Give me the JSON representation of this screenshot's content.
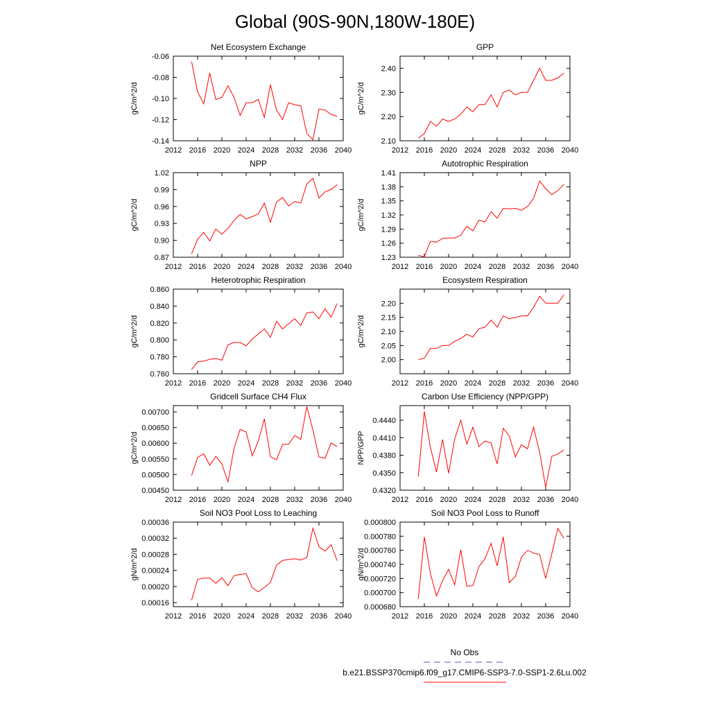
{
  "title": "Global (90S-90N,180W-180E)",
  "legend": [
    {
      "label": "No Obs",
      "color": "#4f4fcf",
      "style": "dashed"
    },
    {
      "label": "b.e21.BSSP370cmip6.f09_g17.CMIP6-SSP3-7.0-SSP1-2.6Lu.002",
      "color": "#ff0000",
      "style": "solid"
    }
  ],
  "chart_data": [
    {
      "type": "line",
      "title": "Net Ecosystem Exchange",
      "ylabel": "gC/m^2/d",
      "xlim": [
        2012,
        2040
      ],
      "ylim": [
        -0.14,
        -0.06
      ],
      "xticks": [
        2012,
        2016,
        2020,
        2024,
        2028,
        2032,
        2036,
        2040
      ],
      "yticks": [
        -0.14,
        -0.12,
        -0.1,
        -0.08,
        -0.06
      ],
      "ytick_labels": [
        "-0.14",
        "-0.12",
        "-0.10",
        "-0.08",
        "-0.06"
      ],
      "x": [
        2015,
        2016,
        2017,
        2018,
        2019,
        2020,
        2021,
        2022,
        2023,
        2024,
        2025,
        2026,
        2027,
        2028,
        2029,
        2030,
        2031,
        2032,
        2033,
        2034,
        2035,
        2036,
        2037,
        2038,
        2039
      ],
      "values": [
        -0.065,
        -0.094,
        -0.105,
        -0.076,
        -0.101,
        -0.099,
        -0.088,
        -0.099,
        -0.116,
        -0.104,
        -0.104,
        -0.101,
        -0.118,
        -0.087,
        -0.111,
        -0.12,
        -0.104,
        -0.106,
        -0.107,
        -0.133,
        -0.139,
        -0.11,
        -0.111,
        -0.115,
        -0.117
      ],
      "color": "#ff0000"
    },
    {
      "type": "line",
      "title": "GPP",
      "ylabel": "gC/m^2/d",
      "xlim": [
        2012,
        2040
      ],
      "ylim": [
        2.1,
        2.45
      ],
      "xticks": [
        2012,
        2016,
        2020,
        2024,
        2028,
        2032,
        2036,
        2040
      ],
      "yticks": [
        2.1,
        2.2,
        2.3,
        2.4
      ],
      "ytick_labels": [
        "2.10",
        "2.20",
        "2.30",
        "2.40"
      ],
      "x": [
        2015,
        2016,
        2017,
        2018,
        2019,
        2020,
        2021,
        2022,
        2023,
        2024,
        2025,
        2026,
        2027,
        2028,
        2029,
        2030,
        2031,
        2032,
        2033,
        2034,
        2035,
        2036,
        2037,
        2038,
        2039
      ],
      "values": [
        2.11,
        2.13,
        2.18,
        2.16,
        2.19,
        2.18,
        2.19,
        2.21,
        2.24,
        2.22,
        2.25,
        2.25,
        2.29,
        2.24,
        2.3,
        2.31,
        2.29,
        2.3,
        2.3,
        2.35,
        2.4,
        2.35,
        2.35,
        2.36,
        2.38
      ],
      "color": "#ff0000"
    },
    {
      "type": "line",
      "title": "NPP",
      "ylabel": "gC/m^2/d",
      "xlim": [
        2012,
        2040
      ],
      "ylim": [
        0.87,
        1.02
      ],
      "xticks": [
        2012,
        2016,
        2020,
        2024,
        2028,
        2032,
        2036,
        2040
      ],
      "yticks": [
        0.87,
        0.9,
        0.93,
        0.96,
        0.99,
        1.02
      ],
      "ytick_labels": [
        "0.87",
        "0.90",
        "0.93",
        "0.96",
        "0.99",
        "1.02"
      ],
      "x": [
        2015,
        2016,
        2017,
        2018,
        2019,
        2020,
        2021,
        2022,
        2023,
        2024,
        2025,
        2026,
        2027,
        2028,
        2029,
        2030,
        2031,
        2032,
        2033,
        2034,
        2035,
        2036,
        2037,
        2038,
        2039
      ],
      "values": [
        0.876,
        0.902,
        0.914,
        0.899,
        0.92,
        0.911,
        0.921,
        0.935,
        0.946,
        0.938,
        0.942,
        0.947,
        0.966,
        0.932,
        0.968,
        0.976,
        0.961,
        0.969,
        0.966,
        1.0,
        1.01,
        0.975,
        0.986,
        0.99,
        0.999
      ],
      "color": "#ff0000"
    },
    {
      "type": "line",
      "title": "Autotrophic Respiration",
      "ylabel": "gC/m^2/d",
      "xlim": [
        2012,
        2040
      ],
      "ylim": [
        1.23,
        1.41
      ],
      "xticks": [
        2012,
        2016,
        2020,
        2024,
        2028,
        2032,
        2036,
        2040
      ],
      "yticks": [
        1.23,
        1.26,
        1.29,
        1.32,
        1.35,
        1.38,
        1.41
      ],
      "ytick_labels": [
        "1.23",
        "1.26",
        "1.29",
        "1.32",
        "1.35",
        "1.38",
        "1.41"
      ],
      "x": [
        2015,
        2016,
        2017,
        2018,
        2019,
        2020,
        2021,
        2022,
        2023,
        2024,
        2025,
        2026,
        2027,
        2028,
        2029,
        2030,
        2031,
        2032,
        2033,
        2034,
        2035,
        2036,
        2037,
        2038,
        2039
      ],
      "values": [
        1.234,
        1.231,
        1.264,
        1.262,
        1.27,
        1.271,
        1.271,
        1.277,
        1.296,
        1.286,
        1.309,
        1.305,
        1.327,
        1.313,
        1.334,
        1.333,
        1.334,
        1.33,
        1.338,
        1.355,
        1.392,
        1.376,
        1.363,
        1.372,
        1.385
      ],
      "color": "#ff0000"
    },
    {
      "type": "line",
      "title": "Heterotrophic Respiration",
      "ylabel": "gC/m^2/d",
      "xlim": [
        2012,
        2040
      ],
      "ylim": [
        0.76,
        0.86
      ],
      "xticks": [
        2012,
        2016,
        2020,
        2024,
        2028,
        2032,
        2036,
        2040
      ],
      "yticks": [
        0.76,
        0.78,
        0.8,
        0.82,
        0.84,
        0.86
      ],
      "ytick_labels": [
        "0.760",
        "0.780",
        "0.800",
        "0.820",
        "0.840",
        "0.860"
      ],
      "x": [
        2015,
        2016,
        2017,
        2018,
        2019,
        2020,
        2021,
        2022,
        2023,
        2024,
        2025,
        2026,
        2027,
        2028,
        2029,
        2030,
        2031,
        2032,
        2033,
        2034,
        2035,
        2036,
        2037,
        2038,
        2039
      ],
      "values": [
        0.765,
        0.774,
        0.775,
        0.777,
        0.778,
        0.776,
        0.794,
        0.797,
        0.797,
        0.793,
        0.801,
        0.807,
        0.813,
        0.803,
        0.822,
        0.813,
        0.819,
        0.825,
        0.817,
        0.832,
        0.833,
        0.825,
        0.837,
        0.827,
        0.843
      ],
      "color": "#ff0000"
    },
    {
      "type": "line",
      "title": "Ecosystem Respiration",
      "ylabel": "gC/m^2/d",
      "xlim": [
        2012,
        2040
      ],
      "ylim": [
        1.95,
        2.25
      ],
      "xticks": [
        2012,
        2016,
        2020,
        2024,
        2028,
        2032,
        2036,
        2040
      ],
      "yticks": [
        2.0,
        2.05,
        2.1,
        2.15,
        2.2
      ],
      "ytick_labels": [
        "2.00",
        "2.05",
        "2.10",
        "2.15",
        "2.20"
      ],
      "x": [
        2015,
        2016,
        2017,
        2018,
        2019,
        2020,
        2021,
        2022,
        2023,
        2024,
        2025,
        2026,
        2027,
        2028,
        2029,
        2030,
        2031,
        2032,
        2033,
        2034,
        2035,
        2036,
        2037,
        2038,
        2039
      ],
      "values": [
        2.0,
        2.005,
        2.04,
        2.04,
        2.05,
        2.05,
        2.065,
        2.075,
        2.09,
        2.08,
        2.11,
        2.115,
        2.14,
        2.115,
        2.155,
        2.145,
        2.15,
        2.155,
        2.155,
        2.185,
        2.225,
        2.2,
        2.2,
        2.2,
        2.23
      ],
      "color": "#ff0000"
    },
    {
      "type": "line",
      "title": "Gridcell Surface CH4 Flux",
      "ylabel": "gC/m^2/d",
      "xlim": [
        2012,
        2040
      ],
      "ylim": [
        0.0045,
        0.0072
      ],
      "xticks": [
        2012,
        2016,
        2020,
        2024,
        2028,
        2032,
        2036,
        2040
      ],
      "yticks": [
        0.0045,
        0.005,
        0.0055,
        0.006,
        0.0065,
        0.007
      ],
      "ytick_labels": [
        "0.00450",
        "0.00500",
        "0.00550",
        "0.00600",
        "0.00650",
        "0.00700"
      ],
      "x": [
        2015,
        2016,
        2017,
        2018,
        2019,
        2020,
        2021,
        2022,
        2023,
        2024,
        2025,
        2026,
        2027,
        2028,
        2029,
        2030,
        2031,
        2032,
        2033,
        2034,
        2035,
        2036,
        2037,
        2038,
        2039
      ],
      "values": [
        0.00497,
        0.00555,
        0.00566,
        0.0053,
        0.00558,
        0.00534,
        0.00476,
        0.00583,
        0.00644,
        0.00636,
        0.0056,
        0.00606,
        0.00678,
        0.00557,
        0.00547,
        0.00596,
        0.00597,
        0.00625,
        0.00612,
        0.00717,
        0.00642,
        0.00556,
        0.00552,
        0.00601,
        0.00589
      ],
      "color": "#ff0000"
    },
    {
      "type": "line",
      "title": "Carbon Use Efficiency (NPP/GPP)",
      "ylabel": "NPP/GPP",
      "xlim": [
        2012,
        2040
      ],
      "ylim": [
        0.432,
        0.4465
      ],
      "xticks": [
        2012,
        2016,
        2020,
        2024,
        2028,
        2032,
        2036,
        2040
      ],
      "yticks": [
        0.432,
        0.435,
        0.438,
        0.441,
        0.444
      ],
      "ytick_labels": [
        "0.4320",
        "0.4350",
        "0.4380",
        "0.4410",
        "0.4440"
      ],
      "x": [
        2015,
        2016,
        2017,
        2018,
        2019,
        2020,
        2021,
        2022,
        2023,
        2024,
        2025,
        2026,
        2027,
        2028,
        2029,
        2030,
        2031,
        2032,
        2033,
        2034,
        2035,
        2036,
        2037,
        2038,
        2039
      ],
      "values": [
        0.4343,
        0.4455,
        0.4393,
        0.4351,
        0.4407,
        0.4349,
        0.4408,
        0.444,
        0.4399,
        0.4428,
        0.4395,
        0.4404,
        0.4401,
        0.4365,
        0.4426,
        0.4413,
        0.4377,
        0.4398,
        0.4391,
        0.4428,
        0.4385,
        0.4325,
        0.4378,
        0.4382,
        0.4389
      ],
      "color": "#ff0000"
    },
    {
      "type": "line",
      "title": "Soil NO3 Pool Loss to Leaching",
      "ylabel": "gN/m^2/d",
      "xlim": [
        2012,
        2040
      ],
      "ylim": [
        0.00015,
        0.00036
      ],
      "xticks": [
        2012,
        2016,
        2020,
        2024,
        2028,
        2032,
        2036,
        2040
      ],
      "yticks": [
        0.00016,
        0.0002,
        0.00024,
        0.00028,
        0.00032,
        0.00036
      ],
      "ytick_labels": [
        "0.00016",
        "0.00020",
        "0.00024",
        "0.00028",
        "0.00032",
        "0.00036"
      ],
      "x": [
        2015,
        2016,
        2017,
        2018,
        2019,
        2020,
        2021,
        2022,
        2023,
        2024,
        2025,
        2026,
        2027,
        2028,
        2029,
        2030,
        2031,
        2032,
        2033,
        2034,
        2035,
        2036,
        2037,
        2038,
        2039
      ],
      "values": [
        0.000166,
        0.000218,
        0.000221,
        0.000221,
        0.000208,
        0.000222,
        0.000202,
        0.000227,
        0.00023,
        0.000232,
        0.000197,
        0.000187,
        0.000198,
        0.00021,
        0.000253,
        0.000265,
        0.000267,
        0.000269,
        0.000266,
        0.000272,
        0.000345,
        0.000299,
        0.000288,
        0.000304,
        0.000264
      ],
      "color": "#ff0000"
    },
    {
      "type": "line",
      "title": "Soil NO3 Pool Loss to Runoff",
      "ylabel": "gN/m^2/d",
      "xlim": [
        2012,
        2040
      ],
      "ylim": [
        0.00068,
        0.0008
      ],
      "xticks": [
        2012,
        2016,
        2020,
        2024,
        2028,
        2032,
        2036,
        2040
      ],
      "yticks": [
        0.00068,
        0.0007,
        0.00072,
        0.00074,
        0.00076,
        0.00078,
        0.0008
      ],
      "ytick_labels": [
        "0.000680",
        "0.000700",
        "0.000720",
        "0.000740",
        "0.000760",
        "0.000780",
        "0.000800"
      ],
      "x": [
        2015,
        2016,
        2017,
        2018,
        2019,
        2020,
        2021,
        2022,
        2023,
        2024,
        2025,
        2026,
        2027,
        2028,
        2029,
        2030,
        2031,
        2032,
        2033,
        2034,
        2035,
        2036,
        2037,
        2038,
        2039
      ],
      "values": [
        0.000691,
        0.000779,
        0.000727,
        0.000695,
        0.000717,
        0.000733,
        0.000711,
        0.000761,
        0.000709,
        0.00071,
        0.000737,
        0.000748,
        0.00077,
        0.000738,
        0.000779,
        0.000714,
        0.000723,
        0.00075,
        0.00076,
        0.000756,
        0.000754,
        0.00072,
        0.000755,
        0.000791,
        0.000777
      ],
      "color": "#ff0000"
    }
  ]
}
